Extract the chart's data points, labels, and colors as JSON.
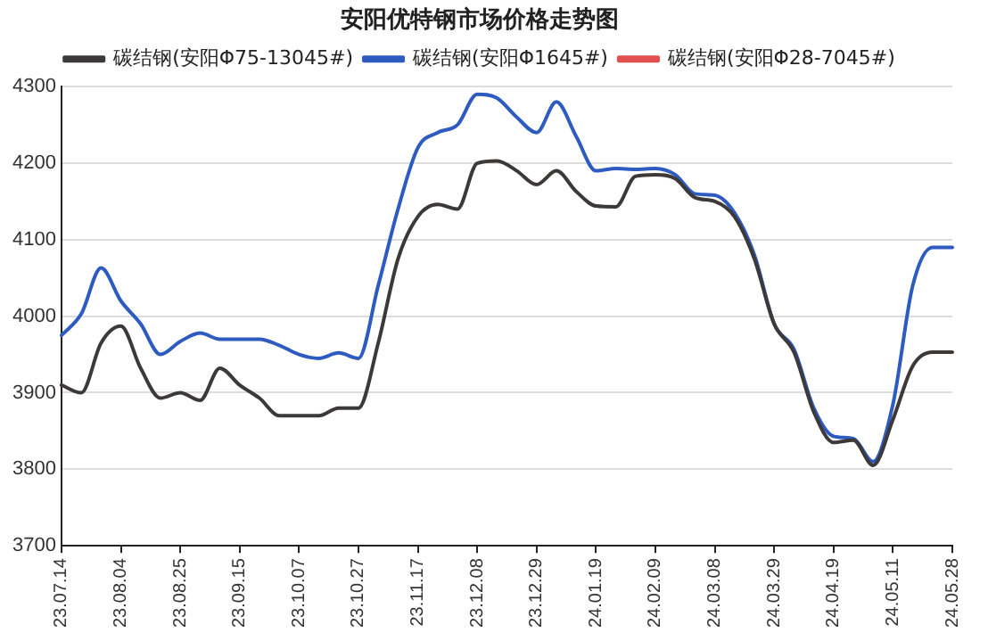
{
  "chart_data": {
    "type": "line",
    "title": "安阳优特钢市场价格走势图",
    "categories": [
      "23.07.14",
      null,
      null,
      "23.08.04",
      null,
      null,
      "23.08.25",
      null,
      null,
      "23.09.15",
      null,
      null,
      "23.10.07",
      null,
      null,
      "23.10.27",
      null,
      null,
      "23.11.17",
      null,
      null,
      "23.12.08",
      null,
      null,
      "23.12.29",
      null,
      null,
      "24.01.19",
      null,
      null,
      "24.02.09",
      null,
      null,
      "24.03.08",
      null,
      null,
      "24.03.29",
      null,
      null,
      "24.04.19",
      null,
      null,
      "24.05.11",
      null,
      null,
      "24.05.28"
    ],
    "series": [
      {
        "name": "碳结钢(安阳Φ75-13045#)",
        "color": "#3d3939",
        "values": [
          3910,
          3900,
          3965,
          3987,
          3932,
          3893,
          3900,
          3890,
          3932,
          3910,
          3893,
          3870,
          3870,
          3870,
          3880,
          3880,
          3965,
          4075,
          4130,
          4146,
          4140,
          4200,
          4203,
          4190,
          4172,
          4190,
          4163,
          4144,
          4143,
          4183,
          4185,
          4180,
          4155,
          4150,
          4130,
          4075,
          3990,
          3953,
          3875,
          3835,
          3838,
          3805,
          3865,
          3935,
          3953,
          3953
        ]
      },
      {
        "name": "碳结钢(安阳Φ1645#)",
        "color": "#2e5bbf",
        "values": [
          3975,
          4003,
          4063,
          4020,
          3990,
          3950,
          3967,
          3978,
          3970,
          3970,
          3970,
          3962,
          3950,
          3945,
          3952,
          3945,
          4040,
          4140,
          4220,
          4240,
          4250,
          4290,
          4285,
          4260,
          4240,
          4280,
          4235,
          4190,
          4193,
          4192,
          4193,
          4185,
          4160,
          4158,
          4135,
          4080,
          3990,
          3957,
          3880,
          3843,
          3840,
          3810,
          3885,
          4040,
          4090,
          4090
        ]
      },
      {
        "name": "碳结钢(安阳Φ28-7045#)",
        "color": "#e05050",
        "values": [
          null,
          null,
          null,
          null,
          null,
          null,
          null,
          null,
          null,
          null,
          null,
          null,
          null,
          null,
          null,
          null,
          null,
          null,
          null,
          null,
          null,
          null,
          null,
          null,
          null,
          null,
          null,
          null,
          null,
          null,
          null,
          null,
          null,
          null,
          null,
          null,
          null,
          null,
          null,
          null,
          null,
          null,
          null,
          null,
          null,
          null
        ]
      }
    ],
    "ylim": [
      3700,
      4300
    ],
    "yticks": [
      3700,
      3800,
      3900,
      4000,
      4100,
      4200,
      4300
    ],
    "grid": "y",
    "legend": "top",
    "marker": "none",
    "line_style": "solid"
  }
}
